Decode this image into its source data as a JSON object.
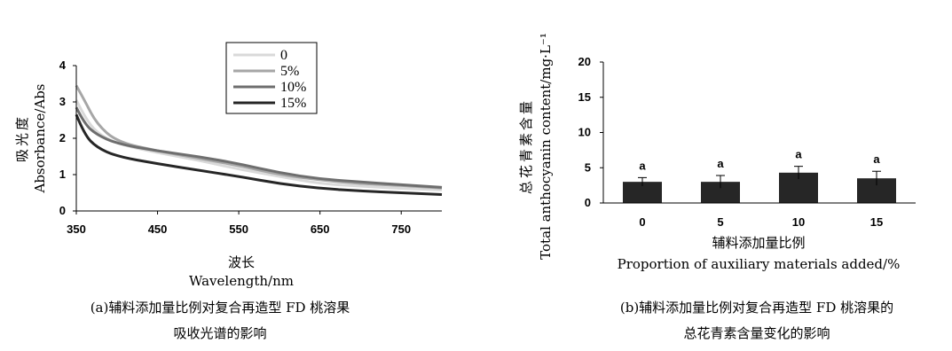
{
  "chart_data": [
    {
      "type": "line",
      "xlabel_cn": "波长",
      "xlabel_en": "Wavelength/nm",
      "ylabel_cn": "吸光度",
      "ylabel_en": "Absorbance/Abs",
      "xlim": [
        350,
        800
      ],
      "ylim": [
        0,
        4
      ],
      "xticks": [
        350,
        450,
        550,
        650,
        750
      ],
      "yticks": [
        0,
        1,
        2,
        3,
        4
      ],
      "legend_position": "top-center",
      "series": [
        {
          "name": "0",
          "color": "#d9d9d9",
          "x": [
            350,
            360,
            375,
            400,
            450,
            500,
            550,
            600,
            650,
            700,
            750,
            800
          ],
          "y": [
            3.05,
            2.6,
            2.15,
            1.85,
            1.6,
            1.4,
            1.15,
            0.95,
            0.75,
            0.68,
            0.62,
            0.58
          ]
        },
        {
          "name": "5%",
          "color": "#a6a6a6",
          "x": [
            350,
            360,
            375,
            400,
            450,
            500,
            550,
            600,
            650,
            700,
            750,
            800
          ],
          "y": [
            3.45,
            3.05,
            2.4,
            1.9,
            1.65,
            1.45,
            1.25,
            1.0,
            0.85,
            0.75,
            0.7,
            0.63
          ]
        },
        {
          "name": "10%",
          "color": "#6e6e6e",
          "x": [
            350,
            360,
            375,
            400,
            450,
            500,
            550,
            600,
            650,
            700,
            750,
            800
          ],
          "y": [
            2.85,
            2.4,
            2.1,
            1.85,
            1.65,
            1.5,
            1.3,
            1.05,
            0.88,
            0.8,
            0.72,
            0.65
          ]
        },
        {
          "name": "15%",
          "color": "#262626",
          "x": [
            350,
            360,
            375,
            400,
            450,
            500,
            550,
            600,
            650,
            700,
            750,
            800
          ],
          "y": [
            2.65,
            2.1,
            1.75,
            1.5,
            1.3,
            1.12,
            0.95,
            0.75,
            0.62,
            0.55,
            0.5,
            0.45
          ]
        }
      ]
    },
    {
      "type": "bar",
      "xlabel_cn": "辅料添加量比例",
      "xlabel_en": "Proportion of auxiliary materials added/%",
      "ylabel_cn": "总花青素含量",
      "ylabel_en": "Total anthocyanin content/mg·L⁻¹",
      "categories": [
        "0",
        "5",
        "10",
        "15"
      ],
      "values": [
        3.0,
        3.0,
        4.3,
        3.5
      ],
      "errors": [
        0.6,
        0.9,
        0.9,
        1.0
      ],
      "significance": [
        "a",
        "a",
        "a",
        "a"
      ],
      "ylim": [
        0,
        20
      ],
      "yticks": [
        0,
        5,
        10,
        15,
        20
      ],
      "bar_color": "#262626"
    }
  ],
  "captions": {
    "a_line1": "(a)辅料添加量比例对复合再造型 FD 桃溶果",
    "a_line2": "吸收光谱的影响",
    "b_line1": "(b)辅料添加量比例对复合再造型 FD 桃溶果的",
    "b_line2": "总花青素含量变化的影响"
  }
}
